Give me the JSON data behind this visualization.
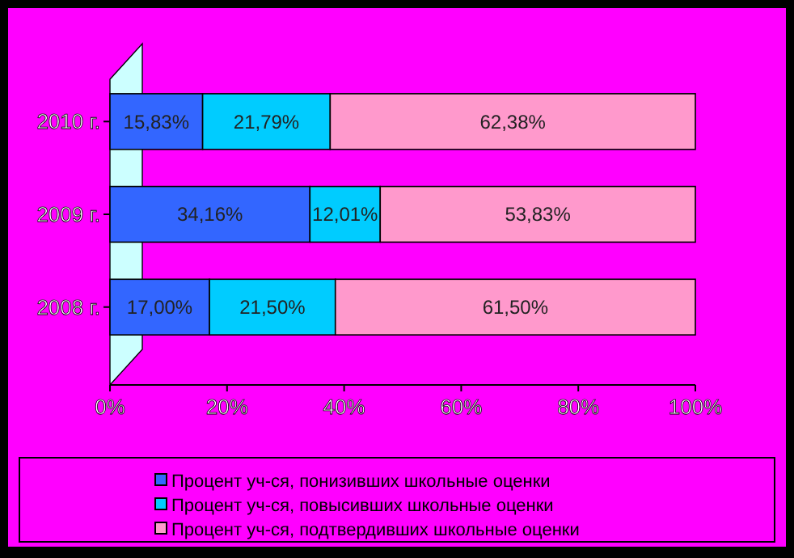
{
  "chart_data": {
    "type": "bar",
    "orientation": "horizontal",
    "stacked": true,
    "categories": [
      "2010 г.",
      "2009 г.",
      "2008 г."
    ],
    "series": [
      {
        "name": "Процент уч-ся, понизивших школьные оценки",
        "color": "#3366ff",
        "values": [
          15.83,
          34.16,
          17.0
        ],
        "value_labels": [
          "15,83%",
          "34,16%",
          "17,00%"
        ]
      },
      {
        "name": "Процент уч-ся, повысивших школьные оценки",
        "color": "#00ccff",
        "values": [
          21.79,
          12.01,
          21.5
        ],
        "value_labels": [
          "21,79%",
          "12,01%",
          "21,50%"
        ]
      },
      {
        "name": "Процент уч-ся, подтвердивших школьные оценки",
        "color": "#ff99cc",
        "values": [
          62.38,
          53.83,
          61.5
        ],
        "value_labels": [
          "62,38%",
          "53,83%",
          "61,50%"
        ]
      }
    ],
    "xlim": [
      0,
      100
    ],
    "xticks": [
      {
        "value": 0,
        "label": "0%"
      },
      {
        "value": 20,
        "label": "20%"
      },
      {
        "value": 40,
        "label": "40%"
      },
      {
        "value": 60,
        "label": "60%"
      },
      {
        "value": 80,
        "label": "80%"
      },
      {
        "value": 100,
        "label": "100%"
      }
    ],
    "legend": "bottom",
    "grid": false
  }
}
